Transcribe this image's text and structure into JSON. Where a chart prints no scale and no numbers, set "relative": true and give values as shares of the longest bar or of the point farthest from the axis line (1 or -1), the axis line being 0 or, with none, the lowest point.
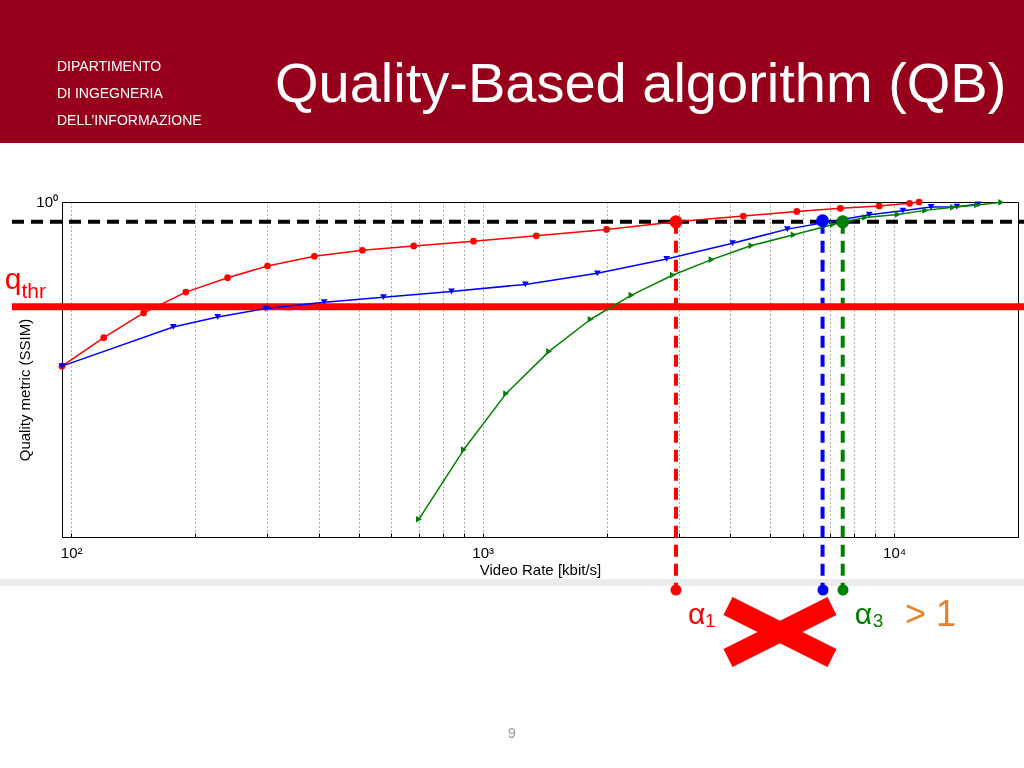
{
  "chart_data": {
    "type": "line",
    "title": "Quality-Based algorithm (QB)",
    "xlabel": "Video Rate [kbit/s]",
    "ylabel": "Quality metric (SSIM)",
    "annotations": [
      "DIPARTIMENTO\nDI INGEGNERIA\nDELL’INFORMAZIONE",
      "10⁰",
      "> 1",
      "9"
    ],
    "relative": true,
    "log": "x",
    "xlim": [
      95,
      20000
    ],
    "xticks": [
      {
        "value": 100,
        "label": "10²"
      },
      {
        "value": 200,
        "label": null
      },
      {
        "value": 300,
        "label": null
      },
      {
        "value": 400,
        "label": null
      },
      {
        "value": 500,
        "label": null
      },
      {
        "value": 600,
        "label": null
      },
      {
        "value": 700,
        "label": null
      },
      {
        "value": 800,
        "label": null
      },
      {
        "value": 900,
        "label": null
      },
      {
        "value": 1000,
        "label": "10³"
      },
      {
        "value": 2000,
        "label": null
      },
      {
        "value": 3000,
        "label": null
      },
      {
        "value": 4000,
        "label": null
      },
      {
        "value": 5000,
        "label": null
      },
      {
        "value": 6000,
        "label": null
      },
      {
        "value": 7000,
        "label": null
      },
      {
        "value": 8000,
        "label": null
      },
      {
        "value": 9000,
        "label": null
      },
      {
        "value": 10000,
        "label": "10⁴"
      }
    ],
    "grid": "x",
    "series": [
      {
        "color": "#ff0000",
        "marker": "circle",
        "x": [
          95,
          120,
          150,
          190,
          240,
          300,
          390,
          510,
          680,
          950,
          1350,
          2000,
          2950,
          4300,
          5800,
          7400,
          9200,
          10900,
          11500
        ],
        "values": [
          0.51,
          0.595,
          0.669,
          0.731,
          0.774,
          0.809,
          0.838,
          0.856,
          0.869,
          0.883,
          0.899,
          0.918,
          0.941,
          0.958,
          0.972,
          0.981,
          0.988,
          0.996,
          1.0
        ]
      },
      {
        "color": "#0000ff",
        "marker": "triangle",
        "x": [
          95,
          177,
          227,
          297,
          412,
          574,
          840,
          1270,
          1900,
          2800,
          4050,
          5500,
          8700,
          10500,
          12300,
          14200,
          16000
        ],
        "values": [
          0.51,
          0.627,
          0.657,
          0.682,
          0.701,
          0.716,
          0.733,
          0.754,
          0.787,
          0.83,
          0.877,
          0.919,
          0.962,
          0.974,
          0.985,
          0.986,
          0.993
        ]
      },
      {
        "color": "#008000",
        "marker": "triangle",
        "x": [
          700,
          900,
          1140,
          1450,
          1830,
          2300,
          2900,
          3600,
          4500,
          5700,
          7100,
          8500,
          10200,
          11900,
          13900,
          15900,
          18200
        ],
        "values": [
          0.053,
          0.261,
          0.428,
          0.554,
          0.65,
          0.722,
          0.782,
          0.828,
          0.87,
          0.902,
          0.933,
          0.954,
          0.963,
          0.975,
          0.984,
          0.991,
          0.999
        ]
      },
      {
        "type": "scatter",
        "color": "#ff0000",
        "marker": "circle",
        "x": [
          2950
        ],
        "values": [
          0.941
        ]
      },
      {
        "type": "scatter",
        "color": "#0000ff",
        "marker": "circle",
        "x": [
          6700
        ],
        "values": [
          0.944
        ]
      },
      {
        "type": "scatter",
        "color": "#008000",
        "marker": "circle",
        "x": [
          7500
        ],
        "values": [
          0.941
        ]
      }
    ],
    "ref_lines": [
      {
        "axis": "x",
        "value": 2950,
        "label": "α₁",
        "color": "#ff0000",
        "line_style": "dashed"
      },
      {
        "axis": "x",
        "value": 6700,
        "color": "#0000ff",
        "line_style": "dashed"
      },
      {
        "axis": "x",
        "value": 7500,
        "label": "α₃",
        "color": "#008000",
        "line_style": "dashed"
      },
      {
        "axis": "y",
        "value": 0.687,
        "label": "q$_{thr}$",
        "color": "#ff0000",
        "line_style": "solid"
      },
      {
        "axis": "y",
        "value": 0.941,
        "color": "#000000",
        "line_style": "dashed"
      }
    ]
  }
}
